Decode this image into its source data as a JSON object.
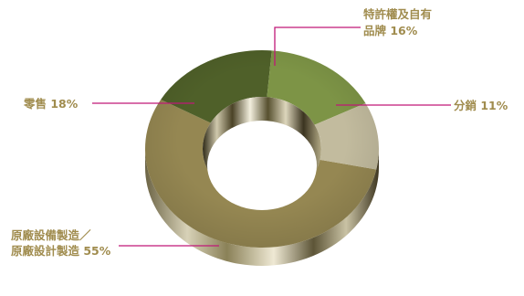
{
  "chart_data": {
    "type": "pie",
    "title": "",
    "donut": true,
    "legend": "none",
    "slices": [
      {
        "label": "原廠設備製造／原廠設計製造",
        "label_lines": [
          "原廠設備製造／",
          "原廠設計製造 55%"
        ],
        "value": 55,
        "percent_label": "55%",
        "color": "#958752"
      },
      {
        "label": "零售",
        "label_lines": [
          "零售 18%"
        ],
        "value": 18,
        "percent_label": "18%",
        "color": "#4f6029"
      },
      {
        "label": "特許權及自有品牌",
        "label_lines": [
          "特許權及自有",
          "品牌 16%"
        ],
        "value": 16,
        "percent_label": "16%",
        "color": "#7d9446"
      },
      {
        "label": "分銷",
        "label_lines": [
          "分銷 11%"
        ],
        "value": 11,
        "percent_label": "11%",
        "color": "#c2bb9e"
      }
    ]
  },
  "colors": {
    "label_text": "#a08c4e",
    "leader_line": "#c01878",
    "wall_dark": "#38301a",
    "wall_light": "#e2dcc6"
  }
}
